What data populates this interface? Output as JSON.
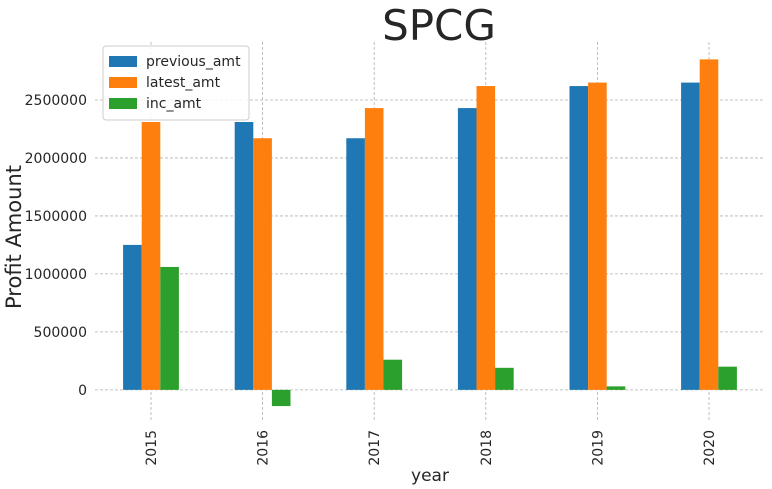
{
  "chart_data": {
    "type": "bar",
    "title": "SPCG",
    "xlabel": "year",
    "ylabel": "Profit Amount",
    "categories": [
      "2015",
      "2016",
      "2017",
      "2018",
      "2019",
      "2020"
    ],
    "series": [
      {
        "name": "previous_amt",
        "color": "#1f77b4",
        "values": [
          1250000,
          2310000,
          2170000,
          2430000,
          2620000,
          2650000
        ]
      },
      {
        "name": "latest_amt",
        "color": "#ff7f0e",
        "values": [
          2310000,
          2170000,
          2430000,
          2620000,
          2650000,
          2850000
        ]
      },
      {
        "name": "inc_amt",
        "color": "#2ca02c",
        "values": [
          1060000,
          -140000,
          260000,
          190000,
          30000,
          200000
        ]
      }
    ],
    "yticks": [
      0,
      500000,
      1000000,
      1500000,
      2000000,
      2500000
    ],
    "ytick_labels": [
      "0",
      "500000",
      "1000000",
      "1500000",
      "2000000",
      "2500000"
    ],
    "ylim": [
      -260000,
      3000000
    ],
    "grid": true,
    "legend_position": "top-left"
  }
}
